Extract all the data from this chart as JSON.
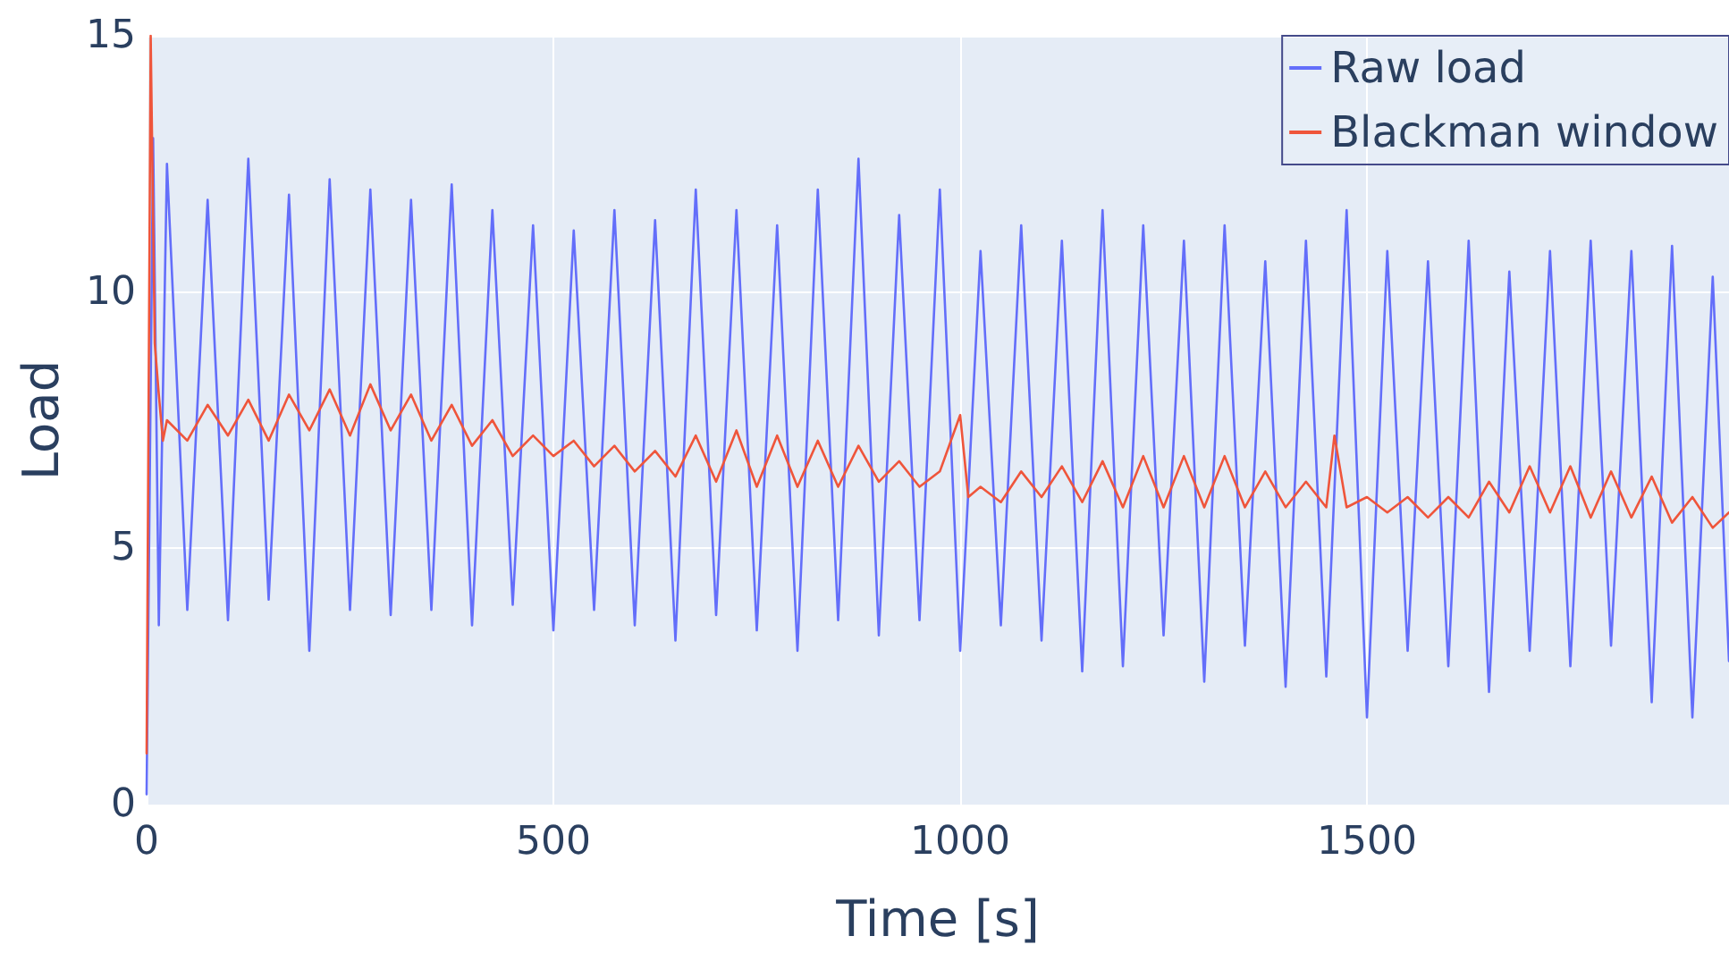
{
  "chart_data": {
    "type": "line",
    "xlabel": "Time [s]",
    "ylabel": "Load",
    "xlim": [
      0,
      1945
    ],
    "ylim": [
      0,
      15
    ],
    "xticks": [
      0,
      500,
      1000,
      1500
    ],
    "yticks": [
      0,
      5,
      10,
      15
    ],
    "grid": true,
    "legend": "top right",
    "marker": "none",
    "line_style": "solid",
    "series": [
      {
        "name": "Raw load",
        "color": "#636efa",
        "x": [
          0,
          8,
          15,
          25,
          50,
          75,
          100,
          125,
          150,
          175,
          200,
          225,
          250,
          275,
          300,
          325,
          350,
          375,
          400,
          425,
          450,
          475,
          500,
          525,
          550,
          575,
          600,
          625,
          650,
          675,
          700,
          725,
          750,
          775,
          800,
          825,
          850,
          875,
          900,
          925,
          950,
          975,
          1000,
          1025,
          1050,
          1075,
          1100,
          1125,
          1150,
          1175,
          1200,
          1225,
          1250,
          1275,
          1300,
          1325,
          1350,
          1375,
          1400,
          1425,
          1450,
          1475,
          1500,
          1525,
          1550,
          1575,
          1600,
          1625,
          1650,
          1675,
          1700,
          1725,
          1750,
          1775,
          1800,
          1825,
          1850,
          1875,
          1900,
          1925,
          1945
        ],
        "values": [
          0.2,
          13,
          3.5,
          12.5,
          3.8,
          11.8,
          3.6,
          12.6,
          4.0,
          11.9,
          3.0,
          12.2,
          3.8,
          12.0,
          3.7,
          11.8,
          3.8,
          12.1,
          3.5,
          11.6,
          3.9,
          11.3,
          3.4,
          11.2,
          3.8,
          11.6,
          3.5,
          11.4,
          3.2,
          12.0,
          3.7,
          11.6,
          3.4,
          11.3,
          3.0,
          12.0,
          3.6,
          12.6,
          3.3,
          11.5,
          3.6,
          12.0,
          3.0,
          10.8,
          3.5,
          11.3,
          3.2,
          11.0,
          2.6,
          11.6,
          2.7,
          11.3,
          3.3,
          11.0,
          2.4,
          11.3,
          3.1,
          10.6,
          2.3,
          11.0,
          2.5,
          11.6,
          1.7,
          10.8,
          3.0,
          10.6,
          2.7,
          11.0,
          2.2,
          10.4,
          3.0,
          10.8,
          2.7,
          11.0,
          3.1,
          10.8,
          2.0,
          10.9,
          1.7,
          10.3,
          2.8
        ]
      },
      {
        "name": "Blackman window",
        "color": "#ef553b",
        "x": [
          0,
          5,
          10,
          15,
          20,
          25,
          50,
          75,
          100,
          125,
          150,
          175,
          200,
          225,
          250,
          275,
          300,
          325,
          350,
          375,
          400,
          425,
          450,
          475,
          500,
          525,
          550,
          575,
          600,
          625,
          650,
          675,
          700,
          725,
          750,
          775,
          800,
          825,
          850,
          875,
          900,
          925,
          950,
          975,
          1000,
          1010,
          1025,
          1050,
          1075,
          1100,
          1125,
          1150,
          1175,
          1200,
          1225,
          1250,
          1275,
          1300,
          1325,
          1350,
          1375,
          1400,
          1425,
          1450,
          1460,
          1475,
          1500,
          1525,
          1550,
          1575,
          1600,
          1625,
          1650,
          1675,
          1700,
          1725,
          1750,
          1775,
          1800,
          1825,
          1850,
          1875,
          1900,
          1925,
          1945
        ],
        "values": [
          1.0,
          15,
          9,
          8,
          7.1,
          7.5,
          7.1,
          7.8,
          7.2,
          7.9,
          7.1,
          8.0,
          7.3,
          8.1,
          7.2,
          8.2,
          7.3,
          8.0,
          7.1,
          7.8,
          7.0,
          7.5,
          6.8,
          7.2,
          6.8,
          7.1,
          6.6,
          7.0,
          6.5,
          6.9,
          6.4,
          7.2,
          6.3,
          7.3,
          6.2,
          7.2,
          6.2,
          7.1,
          6.2,
          7.0,
          6.3,
          6.7,
          6.2,
          6.5,
          7.6,
          6.0,
          6.2,
          5.9,
          6.5,
          6.0,
          6.6,
          5.9,
          6.7,
          5.8,
          6.8,
          5.8,
          6.8,
          5.8,
          6.8,
          5.8,
          6.5,
          5.8,
          6.3,
          5.8,
          7.2,
          5.8,
          6.0,
          5.7,
          6.0,
          5.6,
          6.0,
          5.6,
          6.3,
          5.7,
          6.6,
          5.7,
          6.6,
          5.6,
          6.5,
          5.6,
          6.4,
          5.5,
          6.0,
          5.4,
          5.7
        ]
      }
    ]
  }
}
